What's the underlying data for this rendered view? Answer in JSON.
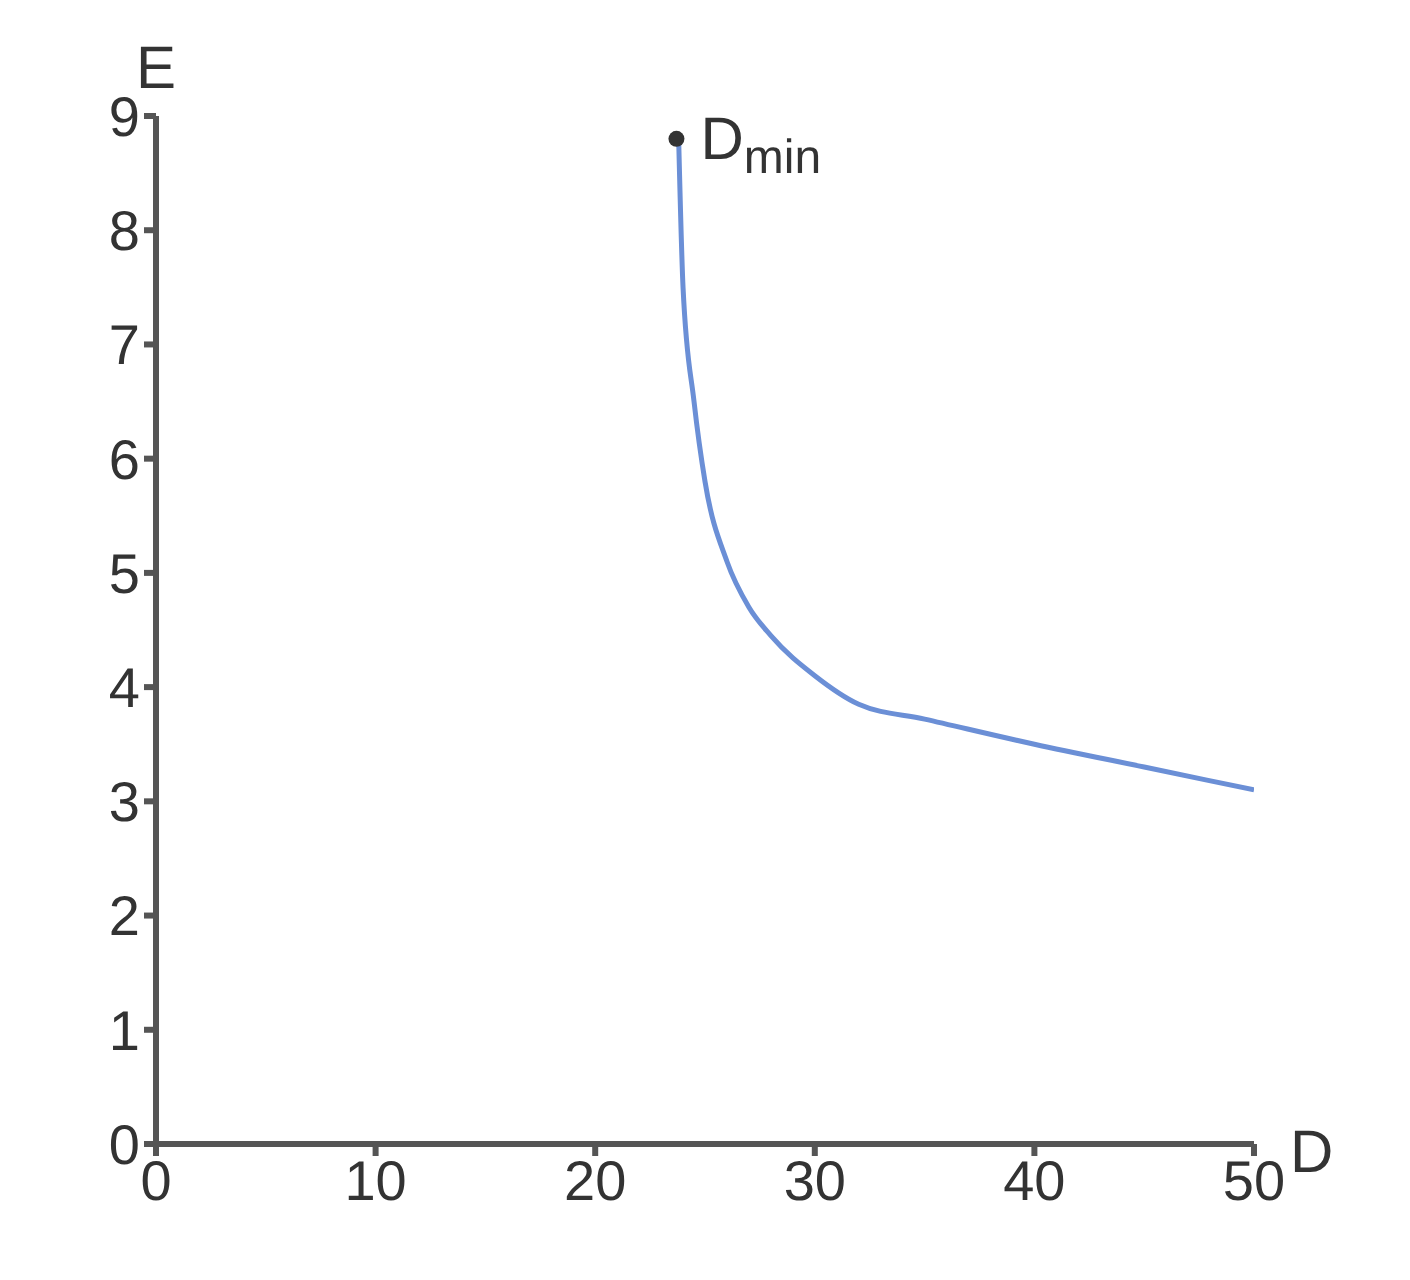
{
  "chart_data": {
    "type": "line",
    "xlabel": "D",
    "ylabel": "E",
    "xlim": [
      0,
      50
    ],
    "xticks": [
      0,
      10,
      20,
      30,
      40,
      50
    ],
    "ylim": [
      0,
      9
    ],
    "yticks": [
      0,
      1,
      2,
      3,
      4,
      5,
      6,
      7,
      8,
      9
    ],
    "grid": false,
    "legend": false,
    "series": [
      {
        "color": "#6b8fd6",
        "marker": "none",
        "x": [
          23.8,
          24.0,
          24.5,
          25,
          26,
          27,
          28,
          30,
          32,
          35,
          40,
          45,
          50
        ],
        "values": [
          8.8,
          7.5,
          6.5,
          5.8,
          5.1,
          4.7,
          4.45,
          4.1,
          3.85,
          3.72,
          3.5,
          3.3,
          3.1
        ]
      },
      {
        "type": "scatter",
        "marker": "circle",
        "color": "#333333",
        "x": [
          23.7
        ],
        "values": [
          8.8
        ]
      }
    ],
    "annotations": [
      {
        "text": "D$_{min}$",
        "x": 23.7,
        "y": 8.8
      }
    ]
  }
}
